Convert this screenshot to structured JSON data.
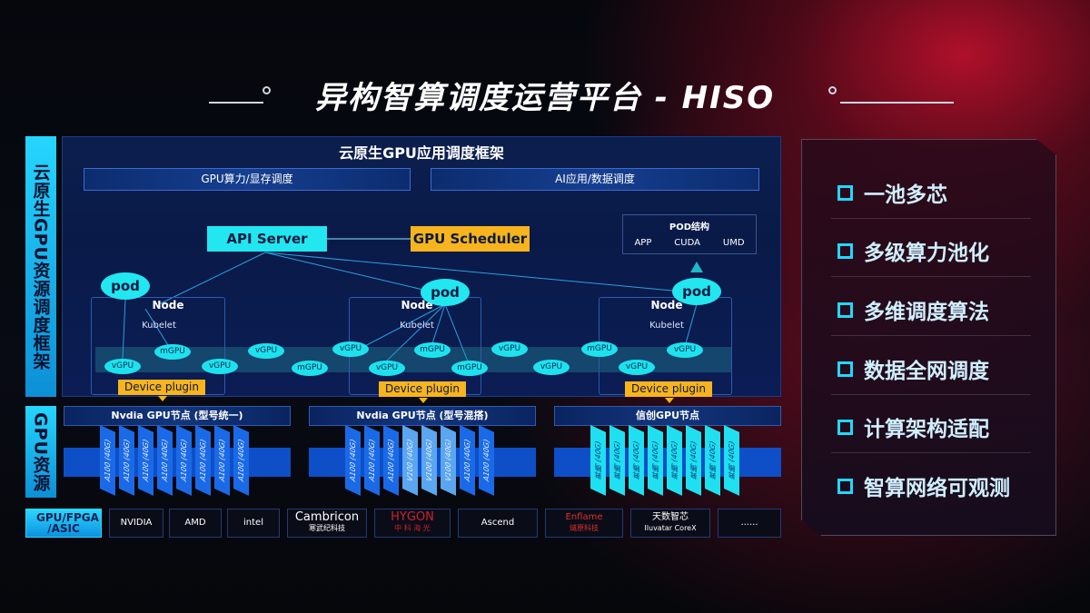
{
  "title": "异构智算调度运营平台 - HISO",
  "left_labels": {
    "framework": "云原生GPU资源调度框架",
    "resources": "GPU资源"
  },
  "framework": {
    "header": "云原生GPU应用调度框架",
    "subbars": [
      "GPU算力/显存调度",
      "AI应用/数据调度"
    ],
    "api_server": "API Server",
    "gpu_scheduler": "GPU Scheduler",
    "pod_structure": {
      "title": "POD结构",
      "items": [
        "APP",
        "CUDA",
        "UMD"
      ]
    },
    "pod_label": "pod",
    "node_label": "Node",
    "kubelet_label": "Kubelet",
    "device_plugin": "Device plugin",
    "chips": [
      "vGPU",
      "mGPU",
      "vGPU",
      "vGPU",
      "mGPU",
      "vGPU",
      "mGPU",
      "vGPU",
      "mGPU",
      "vGPU",
      "vGPU",
      "mGPU",
      "vGPU",
      "vGPU"
    ]
  },
  "gpu_nodes": [
    {
      "title": "Nvdia GPU节点 (型号统一)",
      "cards": [
        "A100 (40G)",
        "A100 (40G)",
        "A100 (40G)",
        "A100 (40G)",
        "A100 (40G)",
        "A100 (40G)",
        "A100 (40G)",
        "A100 (40G)"
      ]
    },
    {
      "title": "Nvdia GPU节点 (型号混搭)",
      "cards": [
        "A100 (40G)",
        "A100 (40G)",
        "A100 (40G)",
        "V100 (40G)",
        "V100 (40G)",
        "V100 (40G)",
        "A100 (40G)",
        "A100 (40G)"
      ]
    },
    {
      "title": "信创GPU节点",
      "cards": [
        "昇腾 (40G)",
        "昇腾 (40G)",
        "昇腾 (40G)",
        "昇腾 (40G)",
        "昇腾 (40G)",
        "昇腾 (40G)",
        "昇腾 (40G)",
        "昇腾 (40G)"
      ]
    }
  ],
  "vendors": {
    "label": "GPU/FPGA /ASIC",
    "items": [
      [
        "NVIDIA",
        ""
      ],
      [
        "AMD",
        ""
      ],
      [
        "intel",
        ""
      ],
      [
        "Cambricon",
        "寒武纪科技"
      ],
      [
        "HYGON",
        "中 科 海 光"
      ],
      [
        "Ascend",
        ""
      ],
      [
        "Enflame",
        "燧原科技"
      ],
      [
        "天数智芯",
        "Iluvatar CoreX"
      ],
      [
        "......",
        ""
      ]
    ]
  },
  "features": [
    "一池多芯",
    "多级算力池化",
    "多维调度算法",
    "数据全网调度",
    "计算架构适配",
    "智算网络可观测"
  ],
  "colors": {
    "cyan": "#22e6f0",
    "yellow": "#f7b41c",
    "blue": "#0e4fc8",
    "red": "#b0102a"
  }
}
